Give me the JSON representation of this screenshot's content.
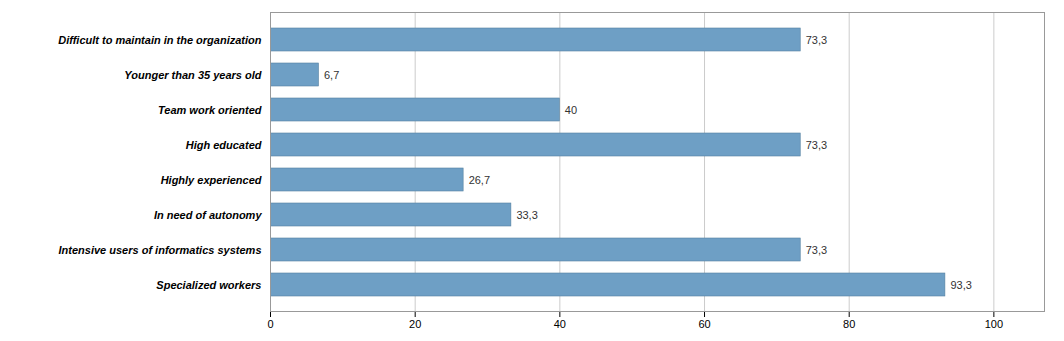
{
  "chart_data": {
    "type": "bar",
    "orientation": "horizontal",
    "categories": [
      "Difficult to maintain in the organization",
      "Younger than 35 years old",
      "Team work oriented",
      "High educated",
      "Highly experienced",
      "In need of autonomy",
      "Intensive users of informatics systems",
      "Specialized workers"
    ],
    "values": [
      73.3,
      6.7,
      40.0,
      73.3,
      26.7,
      33.3,
      73.3,
      93.3
    ],
    "value_labels": [
      "73,3",
      "6,7",
      "40",
      "73,3",
      "26,7",
      "33,3",
      "73,3",
      "93,3"
    ],
    "data_labels": true,
    "color": "#6E9FC5",
    "xlim": [
      0,
      107
    ],
    "xticks": [
      0,
      20,
      40,
      60,
      80,
      100
    ],
    "grid": true
  }
}
